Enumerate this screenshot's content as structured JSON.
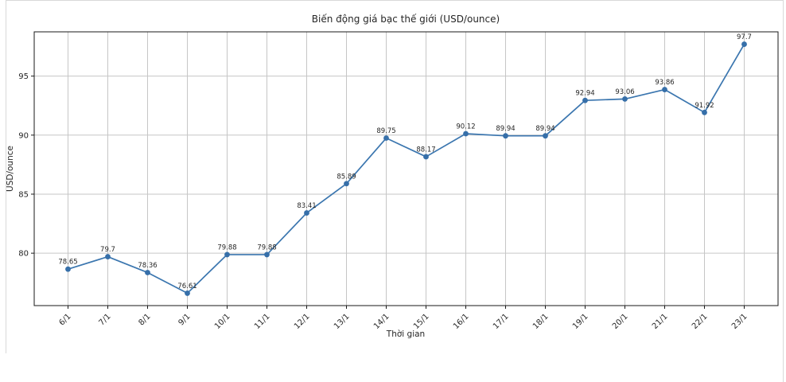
{
  "chart_data": {
    "type": "line",
    "title": "Biến động giá bạc thế giới (USD/ounce)",
    "xlabel": "Thời gian",
    "ylabel": "USD/ounce",
    "categories": [
      "6/1",
      "7/1",
      "8/1",
      "9/1",
      "10/1",
      "11/1",
      "12/1",
      "13/1",
      "14/1",
      "15/1",
      "16/1",
      "17/1",
      "18/1",
      "19/1",
      "20/1",
      "21/1",
      "22/1",
      "23/1"
    ],
    "values": [
      78.65,
      79.7,
      78.36,
      76.61,
      79.88,
      79.88,
      83.41,
      85.89,
      89.75,
      88.17,
      90.12,
      89.94,
      89.94,
      92.94,
      93.06,
      93.86,
      91.92,
      97.7
    ],
    "point_labels": [
      "78.65",
      "79.7",
      "78.36",
      "76.61",
      "79.88",
      "79.88",
      "83.41",
      "85.89",
      "89.75",
      "88.17",
      "90.12",
      "89.94",
      "89.94",
      "92.94",
      "93.06",
      "93.86",
      "91.92",
      "97.7"
    ],
    "yticks": [
      80,
      85,
      90,
      95
    ],
    "ylim": [
      75.56,
      98.75
    ],
    "grid": true,
    "legend": false,
    "colors": {
      "line": "#3b76af",
      "marker": "#366fa9",
      "grid": "#c6c6c6",
      "spine": "#1a1a1a",
      "text": "#262626"
    }
  }
}
